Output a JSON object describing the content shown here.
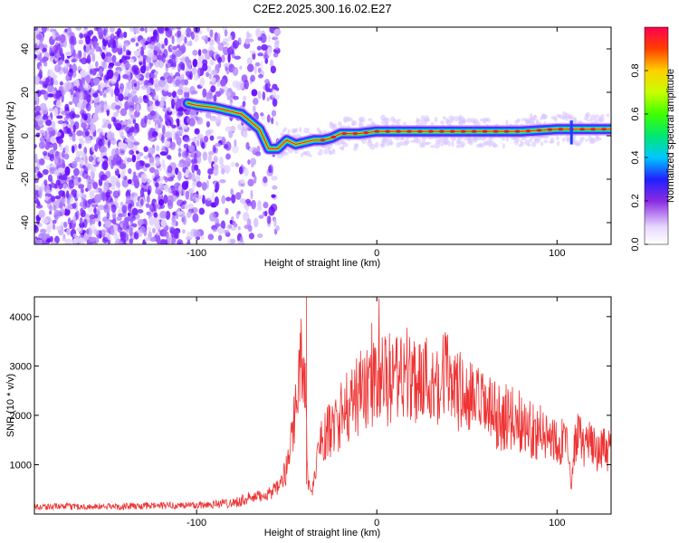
{
  "title": "C2E2.2025.300.16.02.E27",
  "chart_data": [
    {
      "type": "heatmap",
      "name": "spectrogram",
      "xlabel": "Height of straight line (km)",
      "ylabel": "Frequency (Hz)",
      "xlim": [
        -190,
        130
      ],
      "ylim": [
        -50,
        50
      ],
      "xticks": [
        -100,
        0,
        100
      ],
      "xtick_labels": [
        "-100",
        "0",
        "100"
      ],
      "yticks": [
        -40,
        -20,
        0,
        20,
        40
      ],
      "ytick_labels": [
        "-40",
        "-20",
        "0",
        "20",
        "40"
      ],
      "ridge": {
        "x": [
          -105,
          -100,
          -90,
          -80,
          -75,
          -65,
          -60,
          -55,
          -50,
          -45,
          -40,
          -35,
          -30,
          -25,
          -20,
          -10,
          0,
          10,
          20,
          40,
          60,
          80,
          100,
          110,
          120,
          130
        ],
        "y": [
          15,
          14,
          13,
          11,
          10,
          3,
          -6,
          -6,
          -2,
          -4,
          -3,
          -2,
          -2,
          -1,
          1,
          1,
          2,
          2,
          2,
          2,
          2,
          2,
          3,
          3,
          3,
          3
        ]
      },
      "colorbar": {
        "label": "Normalized spectral amplitude",
        "ticks": [
          0.0,
          0.2,
          0.4,
          0.6,
          0.8
        ],
        "tick_labels": [
          "0.0",
          "0.2",
          "0.4",
          "0.6",
          "0.8"
        ],
        "range": [
          0,
          1
        ]
      }
    },
    {
      "type": "line",
      "name": "snr",
      "xlabel": "Height of straight line (km)",
      "ylabel": "SNR (10 * v/v)",
      "xlim": [
        -190,
        130
      ],
      "ylim": [
        0,
        4400
      ],
      "xticks": [
        -100,
        0,
        100
      ],
      "xtick_labels": [
        "-100",
        "0",
        "100"
      ],
      "yticks": [
        1000,
        2000,
        3000,
        4000
      ],
      "ytick_labels": [
        "1000",
        "2000",
        "3000",
        "4000"
      ],
      "color": "#ee3333",
      "envelope": {
        "x": [
          -190,
          -150,
          -100,
          -80,
          -65,
          -55,
          -50,
          -45,
          -42,
          -40,
          -38,
          -36,
          -34,
          -32,
          -30,
          -25,
          -20,
          -15,
          -10,
          -5,
          0,
          5,
          10,
          15,
          20,
          25,
          30,
          35,
          40,
          45,
          50,
          55,
          60,
          65,
          70,
          75,
          80,
          85,
          90,
          95,
          100,
          105,
          108,
          110,
          115,
          120,
          125,
          130
        ],
        "y": [
          150,
          150,
          180,
          230,
          360,
          500,
          900,
          2200,
          3200,
          2800,
          600,
          400,
          900,
          1400,
          1600,
          1700,
          2000,
          2200,
          2450,
          2500,
          2650,
          2700,
          2750,
          2650,
          2800,
          2750,
          2700,
          2750,
          2850,
          2500,
          2350,
          2250,
          2150,
          2000,
          1950,
          1950,
          1850,
          1750,
          1650,
          1550,
          1550,
          1450,
          500,
          1550,
          1450,
          1350,
          1300,
          1250
        ]
      }
    }
  ]
}
